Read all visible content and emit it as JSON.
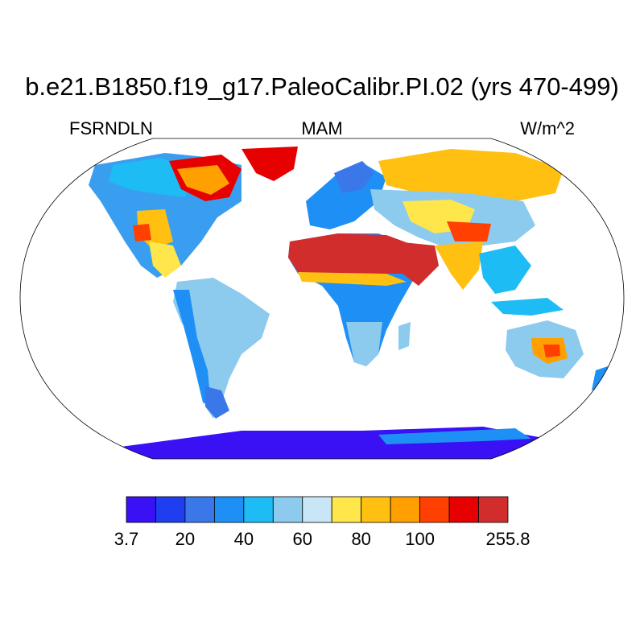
{
  "title": "b.e21.B1850.f19_g17.PaleoCalibr.PI.02 (yrs 470-499)",
  "left_label": "FSRNDLN",
  "center_label": "MAM",
  "right_label": "W/m^2",
  "colorbar": {
    "colors": [
      "#3a10f5",
      "#1e3ef0",
      "#3a78ea",
      "#1e90f5",
      "#1ebcf5",
      "#8ccaee",
      "#c8e6f5",
      "#ffe64a",
      "#ffc012",
      "#ffa000",
      "#ff4000",
      "#e60000",
      "#d22d2d"
    ],
    "labels": [
      {
        "text": "3.7",
        "index": 0
      },
      {
        "text": "20",
        "index": 2
      },
      {
        "text": "40",
        "index": 4
      },
      {
        "text": "60",
        "index": 6
      },
      {
        "text": "80",
        "index": 8
      },
      {
        "text": "100",
        "index": 10
      },
      {
        "text": "255.8",
        "index": 13
      }
    ]
  }
}
